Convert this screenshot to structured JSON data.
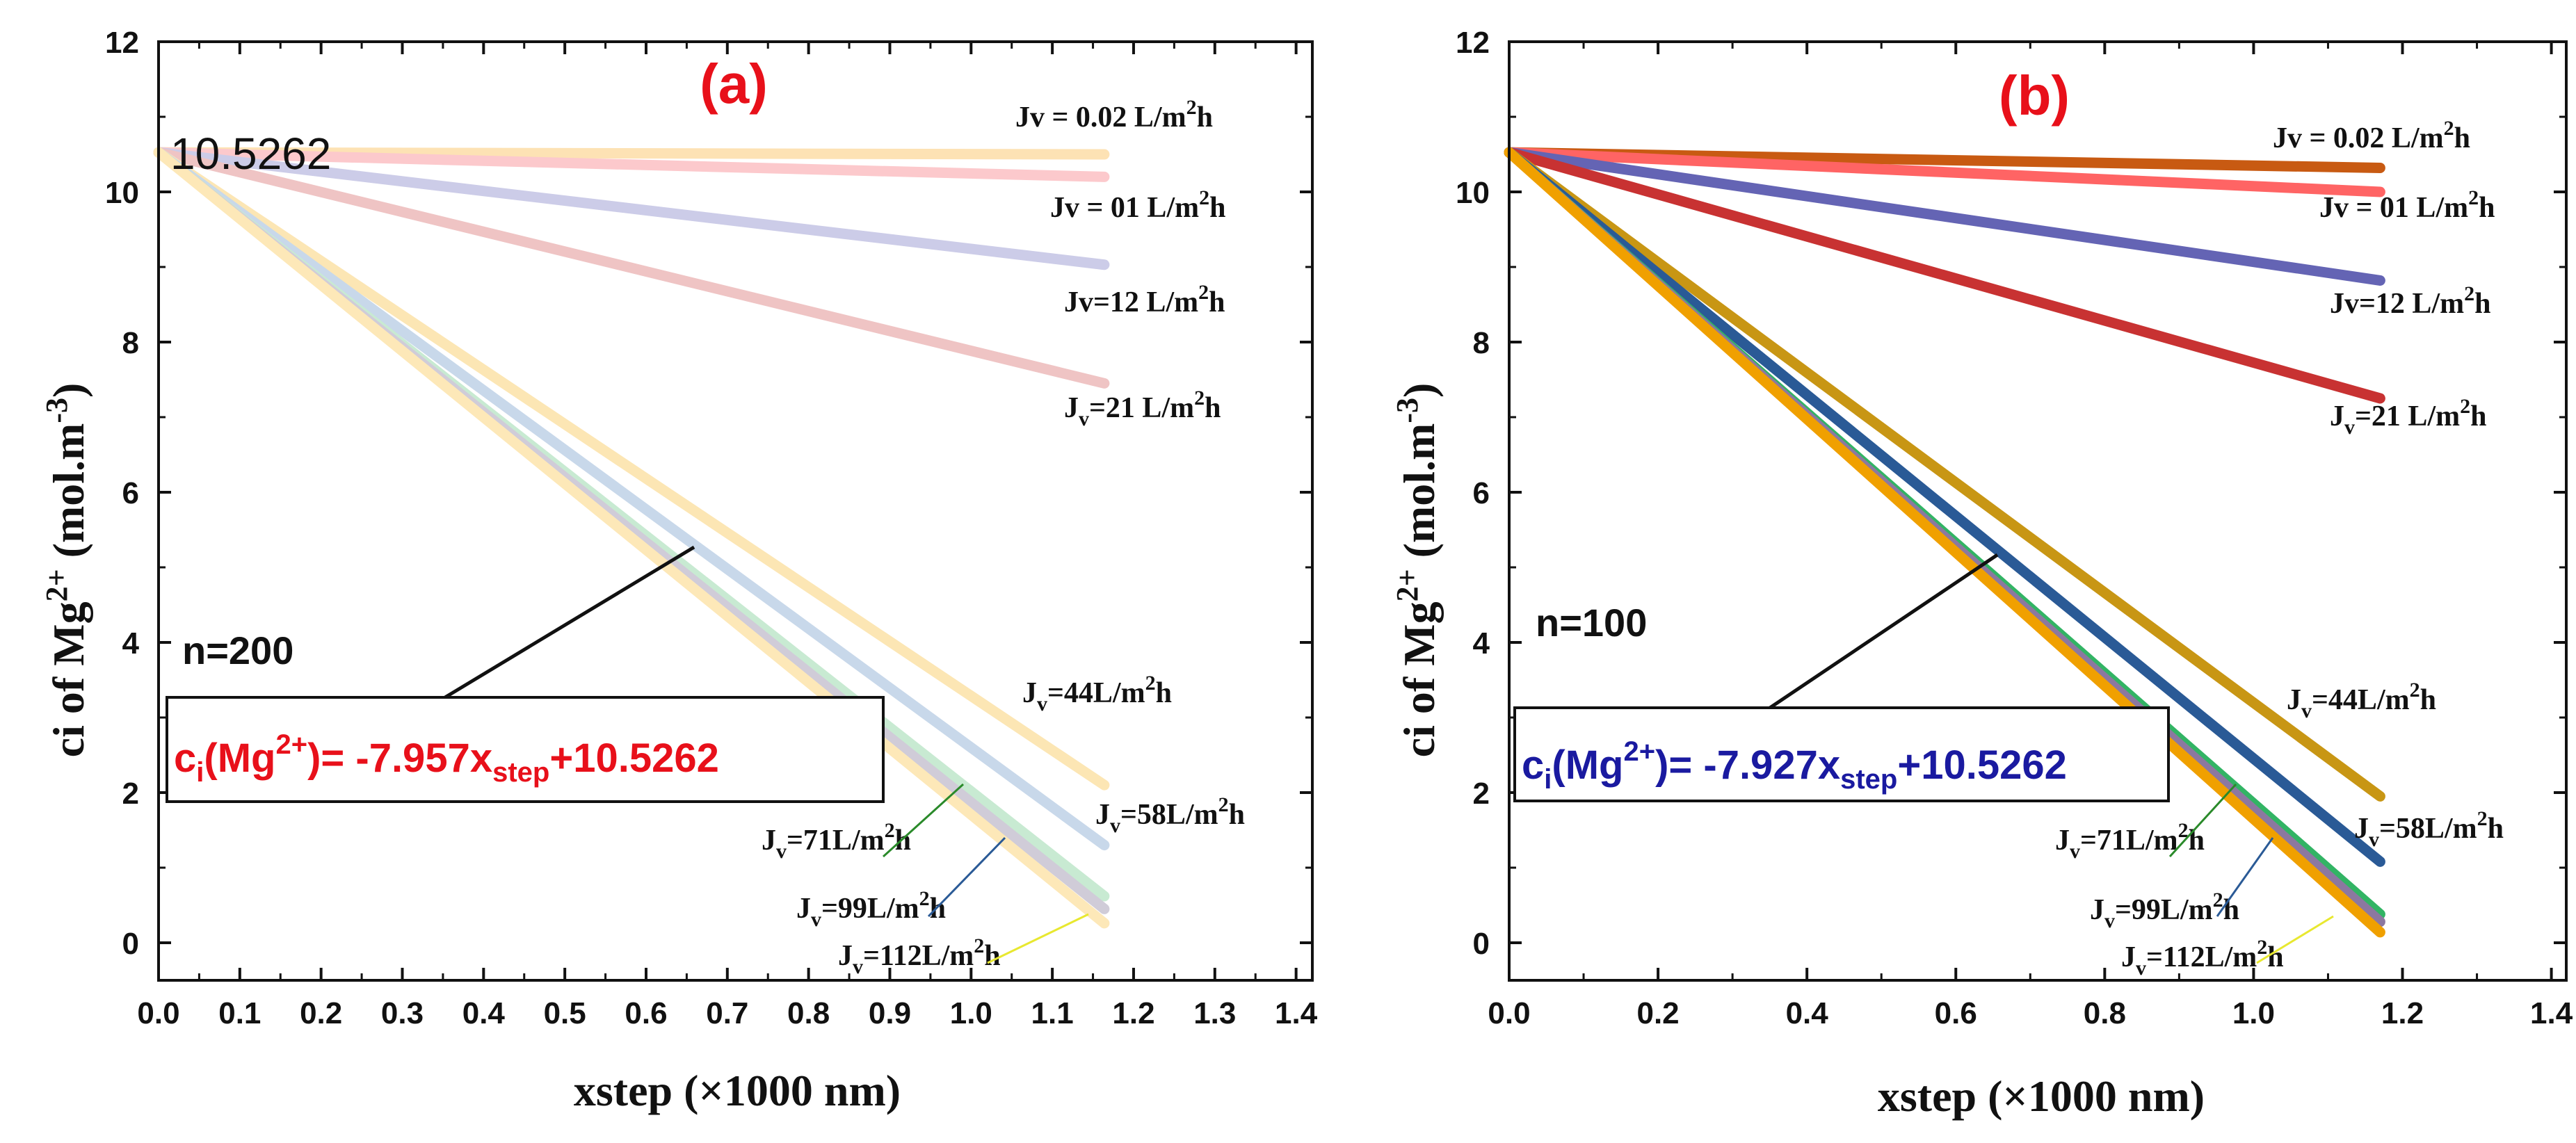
{
  "figure": {
    "panel_a": {
      "label": "(a)",
      "label_color": "#e8101a",
      "n_label": "n=200",
      "intercept_label": "10.5262",
      "equation": {
        "lhs": "c",
        "sub_i": "i",
        "paren": "(Mg",
        "sup": "2+",
        "close": ")",
        "rhs": "= -7.957x",
        "sub_step": "step",
        "tail": "+10.5262",
        "color": "#e8101a"
      }
    },
    "panel_b": {
      "label": "(b)",
      "label_color": "#e8101a",
      "n_label": "n=100",
      "equation": {
        "lhs": "c",
        "sub_i": "i",
        "paren": "(Mg",
        "sup": "2+",
        "close": ")",
        "rhs": "= -7.927x",
        "sub_step": "step",
        "tail": "+10.5262",
        "color": "#1a1aa0"
      }
    },
    "y_axis_title": {
      "pre": "ci of Mg",
      "sup": "2+",
      "mid": " (mol.m",
      "sup2": "-3",
      "post": ")"
    },
    "x_axis_title": "xstep (×1000 nm)"
  },
  "chart_data": [
    {
      "type": "line",
      "panel": "a",
      "title": "(a)",
      "xlabel": "xstep (×1000 nm)",
      "ylabel": "ci of Mg2+ (mol.m-3)",
      "xlim": [
        0,
        1.42
      ],
      "ylim": [
        -0.5,
        12
      ],
      "x_ticks": [
        "0.0",
        "0.1",
        "0.2",
        "0.3",
        "0.4",
        "0.5",
        "0.6",
        "0.7",
        "0.8",
        "0.9",
        "1.0",
        "1.1",
        "1.2",
        "1.3",
        "1.4"
      ],
      "y_ticks": [
        "0",
        "2",
        "4",
        "6",
        "8",
        "10",
        "12"
      ],
      "series": [
        {
          "name": "Jv = 0.02 L/m2h",
          "x": [
            0,
            1.164
          ],
          "y": [
            10.5262,
            10.5
          ],
          "color": "#fde2b4"
        },
        {
          "name": "Jv = 01 L/m2h",
          "x": [
            0,
            1.164
          ],
          "y": [
            10.5262,
            10.2
          ],
          "color": "#fcc9cc"
        },
        {
          "name": "Jv=12 L/m2h",
          "x": [
            0,
            1.164
          ],
          "y": [
            10.5262,
            9.03
          ],
          "color": "#cccce8"
        },
        {
          "name": "Jv=21 L/m2h",
          "x": [
            0,
            1.164
          ],
          "y": [
            10.5262,
            7.45
          ],
          "color": "#efc4c4"
        },
        {
          "name": "Jv=44L/m2h",
          "x": [
            0,
            1.164
          ],
          "y": [
            10.5262,
            2.1
          ],
          "color": "#fce6b4"
        },
        {
          "name": "Jv=58L/m2h",
          "x": [
            0,
            1.164
          ],
          "y": [
            10.5262,
            1.3
          ],
          "color": "#c8d8ea"
        },
        {
          "name": "Jv=71L/m2h",
          "x": [
            0,
            1.164
          ],
          "y": [
            10.5262,
            0.62
          ],
          "color": "#c8ead2"
        },
        {
          "name": "Jv=99L/m2h",
          "x": [
            0,
            1.164
          ],
          "y": [
            10.5262,
            0.45
          ],
          "color": "#d0ccd8"
        },
        {
          "name": "Jv=112L/m2h",
          "x": [
            0,
            1.164
          ],
          "y": [
            10.5262,
            0.26
          ],
          "color": "#fde8b8"
        }
      ],
      "annotations": [
        "n=200",
        "10.5262",
        "ci(Mg2+)= -7.957xstep+10.5262"
      ]
    },
    {
      "type": "line",
      "panel": "b",
      "title": "(b)",
      "xlabel": "xstep (×1000 nm)",
      "ylabel": "ci of Mg2+ (mol.m-3)",
      "xlim": [
        0,
        1.42
      ],
      "ylim": [
        -0.5,
        12
      ],
      "x_ticks": [
        "0.0",
        "0.2",
        "0.4",
        "0.6",
        "0.8",
        "1.0",
        "1.2",
        "1.4"
      ],
      "y_ticks": [
        "0",
        "2",
        "4",
        "6",
        "8",
        "10",
        "12"
      ],
      "series": [
        {
          "name": "Jv = 0.02 L/m2h",
          "x": [
            0,
            1.17
          ],
          "y": [
            10.5262,
            10.32
          ],
          "color": "#c85a12"
        },
        {
          "name": "Jv = 01 L/m2h",
          "x": [
            0,
            1.17
          ],
          "y": [
            10.5262,
            10.0
          ],
          "color": "#ff6464"
        },
        {
          "name": "Jv=12 L/m2h",
          "x": [
            0,
            1.17
          ],
          "y": [
            10.5262,
            8.82
          ],
          "color": "#6464b4"
        },
        {
          "name": "Jv=21 L/m2h",
          "x": [
            0,
            1.17
          ],
          "y": [
            10.5262,
            7.25
          ],
          "color": "#c83232"
        },
        {
          "name": "Jv=44L/m2h",
          "x": [
            0,
            1.17
          ],
          "y": [
            10.5262,
            1.95
          ],
          "color": "#c89614"
        },
        {
          "name": "Jv=58L/m2h",
          "x": [
            0,
            1.17
          ],
          "y": [
            10.5262,
            1.08
          ],
          "color": "#2a5a96"
        },
        {
          "name": "Jv=71L/m2h",
          "x": [
            0,
            1.17
          ],
          "y": [
            10.5262,
            0.38
          ],
          "color": "#32b464"
        },
        {
          "name": "Jv=99L/m2h",
          "x": [
            0,
            1.17
          ],
          "y": [
            10.5262,
            0.28
          ],
          "color": "#8c78a0"
        },
        {
          "name": "Jv=112L/m2h",
          "x": [
            0,
            1.17
          ],
          "y": [
            10.5262,
            0.14
          ],
          "color": "#f0a000"
        }
      ],
      "annotations": [
        "n=100",
        "ci(Mg2+)= -7.927xstep+10.5262"
      ]
    }
  ]
}
